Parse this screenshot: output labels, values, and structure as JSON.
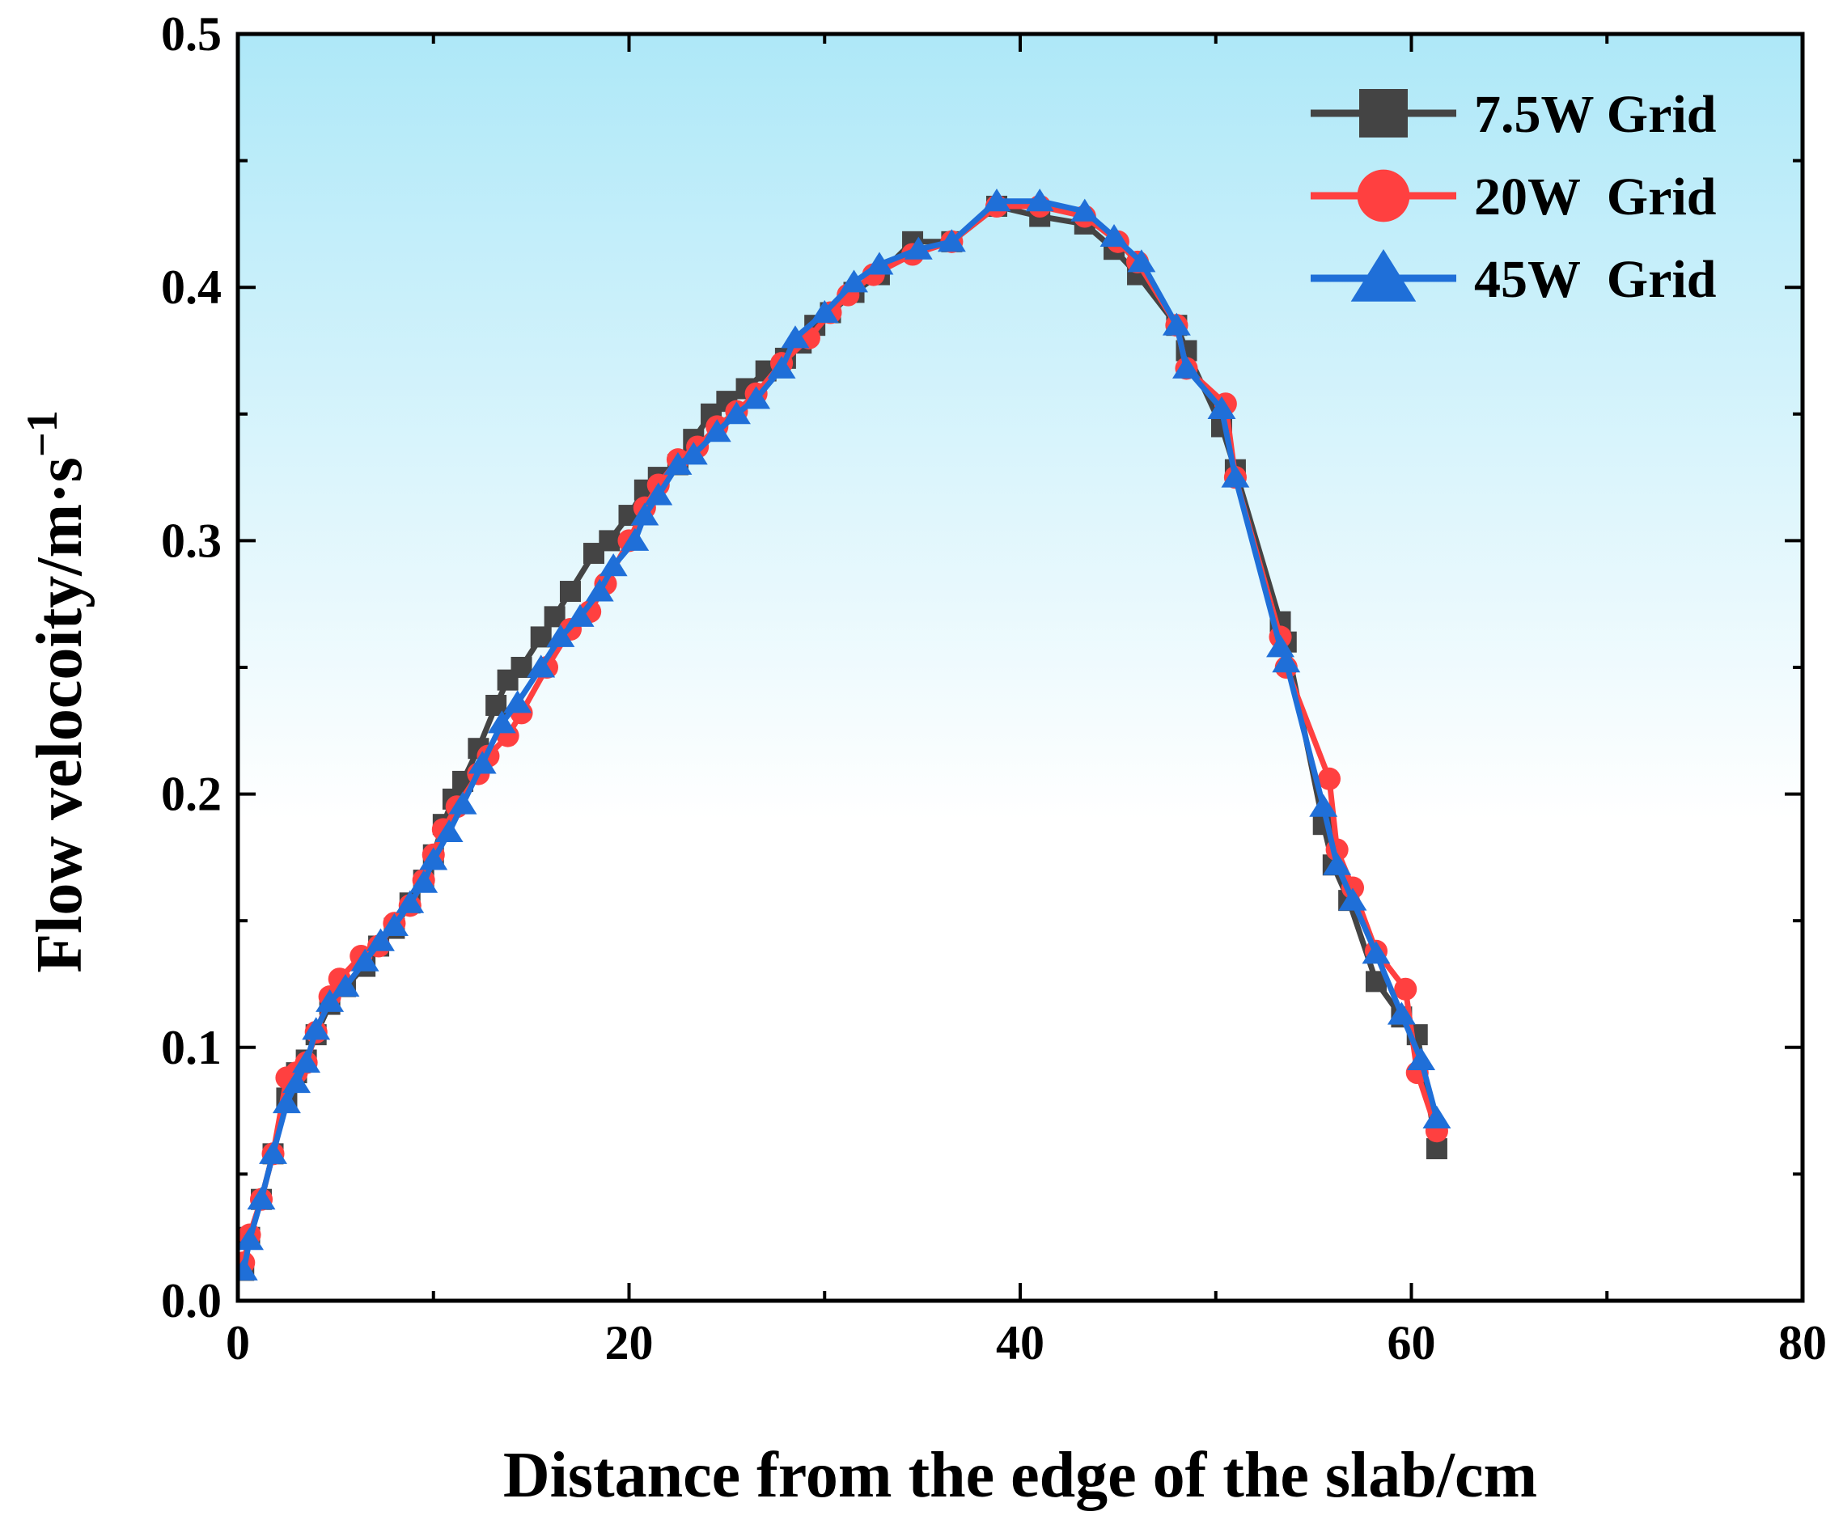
{
  "chart_data": {
    "type": "line",
    "xlabel": "Distance from the edge of the slab/cm",
    "ylabel_main": "Flow velocoity/m·s",
    "ylabel_exp": "−1",
    "xlim": [
      0,
      80
    ],
    "ylim": [
      0,
      0.5
    ],
    "xticks": [
      "0",
      "20",
      "40",
      "60",
      "80"
    ],
    "yticks": [
      "0.0",
      "0.1",
      "0.2",
      "0.3",
      "0.4",
      "0.5"
    ],
    "grid": false,
    "legend_position": "top-right",
    "background_gradient": [
      "#aee8f8",
      "#ffffff"
    ],
    "series": [
      {
        "name": "7.5W Grid",
        "marker": "square",
        "color": "#444444",
        "points": [
          [
            0.3,
            0.012
          ],
          [
            0.6,
            0.025
          ],
          [
            1.2,
            0.04
          ],
          [
            1.8,
            0.058
          ],
          [
            2.5,
            0.08
          ],
          [
            3,
            0.09
          ],
          [
            3.5,
            0.095
          ],
          [
            4,
            0.105
          ],
          [
            4.7,
            0.117
          ],
          [
            5.5,
            0.124
          ],
          [
            6.5,
            0.132
          ],
          [
            7.2,
            0.14
          ],
          [
            8,
            0.147
          ],
          [
            8.8,
            0.157
          ],
          [
            9.5,
            0.166
          ],
          [
            10,
            0.176
          ],
          [
            10.5,
            0.188
          ],
          [
            11,
            0.198
          ],
          [
            11.5,
            0.205
          ],
          [
            12.3,
            0.218
          ],
          [
            13.2,
            0.235
          ],
          [
            13.8,
            0.245
          ],
          [
            14.5,
            0.25
          ],
          [
            15.5,
            0.262
          ],
          [
            16.2,
            0.27
          ],
          [
            17,
            0.28
          ],
          [
            18.2,
            0.295
          ],
          [
            19,
            0.3
          ],
          [
            20,
            0.31
          ],
          [
            20.8,
            0.32
          ],
          [
            21.5,
            0.325
          ],
          [
            22.5,
            0.33
          ],
          [
            23.3,
            0.34
          ],
          [
            24.2,
            0.35
          ],
          [
            25,
            0.355
          ],
          [
            26,
            0.36
          ],
          [
            27,
            0.367
          ],
          [
            28,
            0.372
          ],
          [
            28.8,
            0.378
          ],
          [
            29.5,
            0.385
          ],
          [
            30.3,
            0.39
          ],
          [
            31.5,
            0.398
          ],
          [
            32.8,
            0.405
          ],
          [
            34.5,
            0.418
          ],
          [
            36.5,
            0.418
          ],
          [
            38.8,
            0.432
          ],
          [
            41,
            0.428
          ],
          [
            43.3,
            0.425
          ],
          [
            44.8,
            0.415
          ],
          [
            46,
            0.405
          ],
          [
            48,
            0.385
          ],
          [
            48.5,
            0.375
          ],
          [
            50.3,
            0.345
          ],
          [
            51,
            0.328
          ],
          [
            53.3,
            0.268
          ],
          [
            53.6,
            0.26
          ],
          [
            55.5,
            0.188
          ],
          [
            56,
            0.172
          ],
          [
            56.8,
            0.158
          ],
          [
            58.2,
            0.126
          ],
          [
            59.5,
            0.112
          ],
          [
            60.3,
            0.105
          ],
          [
            61.3,
            0.06
          ]
        ]
      },
      {
        "name": "20W  Grid",
        "marker": "circle",
        "color": "#ff4040",
        "points": [
          [
            0.3,
            0.015
          ],
          [
            0.6,
            0.026
          ],
          [
            1.2,
            0.04
          ],
          [
            1.8,
            0.058
          ],
          [
            2.5,
            0.088
          ],
          [
            3,
            0.09
          ],
          [
            3.5,
            0.094
          ],
          [
            4,
            0.106
          ],
          [
            4.7,
            0.12
          ],
          [
            5.2,
            0.127
          ],
          [
            6.3,
            0.136
          ],
          [
            7.2,
            0.14
          ],
          [
            8,
            0.149
          ],
          [
            8.8,
            0.156
          ],
          [
            9.5,
            0.166
          ],
          [
            10,
            0.176
          ],
          [
            10.5,
            0.186
          ],
          [
            11.2,
            0.195
          ],
          [
            12.3,
            0.208
          ],
          [
            12.8,
            0.215
          ],
          [
            13.8,
            0.223
          ],
          [
            14.5,
            0.232
          ],
          [
            15.8,
            0.25
          ],
          [
            17,
            0.265
          ],
          [
            18,
            0.272
          ],
          [
            18.8,
            0.283
          ],
          [
            20,
            0.3
          ],
          [
            20.8,
            0.313
          ],
          [
            21.5,
            0.322
          ],
          [
            22.5,
            0.332
          ],
          [
            23.5,
            0.337
          ],
          [
            24.5,
            0.345
          ],
          [
            25.5,
            0.351
          ],
          [
            26.5,
            0.358
          ],
          [
            27.8,
            0.37
          ],
          [
            29.2,
            0.38
          ],
          [
            30.3,
            0.39
          ],
          [
            31.2,
            0.397
          ],
          [
            32.5,
            0.405
          ],
          [
            34.5,
            0.413
          ],
          [
            36.5,
            0.418
          ],
          [
            38.8,
            0.432
          ],
          [
            41,
            0.432
          ],
          [
            43.3,
            0.428
          ],
          [
            45,
            0.418
          ],
          [
            46,
            0.41
          ],
          [
            48,
            0.385
          ],
          [
            48.5,
            0.368
          ],
          [
            50.5,
            0.354
          ],
          [
            51,
            0.325
          ],
          [
            53.3,
            0.262
          ],
          [
            53.6,
            0.25
          ],
          [
            55.8,
            0.206
          ],
          [
            56.2,
            0.178
          ],
          [
            57,
            0.163
          ],
          [
            58.2,
            0.138
          ],
          [
            59.7,
            0.123
          ],
          [
            60.3,
            0.09
          ],
          [
            61.3,
            0.067
          ]
        ]
      },
      {
        "name": "45W  Grid",
        "marker": "triangle",
        "color": "#1f6fd8",
        "points": [
          [
            0.3,
            0.012
          ],
          [
            0.6,
            0.024
          ],
          [
            1.2,
            0.04
          ],
          [
            1.8,
            0.058
          ],
          [
            2.5,
            0.078
          ],
          [
            3,
            0.086
          ],
          [
            3.5,
            0.094
          ],
          [
            4,
            0.107
          ],
          [
            4.7,
            0.118
          ],
          [
            5.5,
            0.124
          ],
          [
            6.5,
            0.134
          ],
          [
            7.3,
            0.142
          ],
          [
            8,
            0.148
          ],
          [
            8.8,
            0.157
          ],
          [
            9.5,
            0.165
          ],
          [
            10,
            0.174
          ],
          [
            10.8,
            0.185
          ],
          [
            11.5,
            0.196
          ],
          [
            12.5,
            0.212
          ],
          [
            13.5,
            0.228
          ],
          [
            14.3,
            0.236
          ],
          [
            15.5,
            0.25
          ],
          [
            16.5,
            0.262
          ],
          [
            17.5,
            0.27
          ],
          [
            18.5,
            0.28
          ],
          [
            19.2,
            0.29
          ],
          [
            20.3,
            0.3
          ],
          [
            20.8,
            0.31
          ],
          [
            21.5,
            0.318
          ],
          [
            22.5,
            0.33
          ],
          [
            23.3,
            0.334
          ],
          [
            24.5,
            0.343
          ],
          [
            25.5,
            0.35
          ],
          [
            26.5,
            0.356
          ],
          [
            27.8,
            0.368
          ],
          [
            28.5,
            0.38
          ],
          [
            30,
            0.39
          ],
          [
            31.5,
            0.402
          ],
          [
            32.8,
            0.409
          ],
          [
            34.8,
            0.415
          ],
          [
            36.5,
            0.418
          ],
          [
            38.8,
            0.434
          ],
          [
            41,
            0.434
          ],
          [
            43.3,
            0.43
          ],
          [
            44.8,
            0.42
          ],
          [
            46.2,
            0.41
          ],
          [
            48,
            0.385
          ],
          [
            48.5,
            0.368
          ],
          [
            50.3,
            0.352
          ],
          [
            51,
            0.325
          ],
          [
            53.3,
            0.258
          ],
          [
            53.6,
            0.252
          ],
          [
            55.5,
            0.195
          ],
          [
            56.2,
            0.172
          ],
          [
            57,
            0.158
          ],
          [
            58.2,
            0.137
          ],
          [
            59.5,
            0.113
          ],
          [
            60.5,
            0.095
          ],
          [
            61.3,
            0.072
          ]
        ]
      }
    ]
  }
}
